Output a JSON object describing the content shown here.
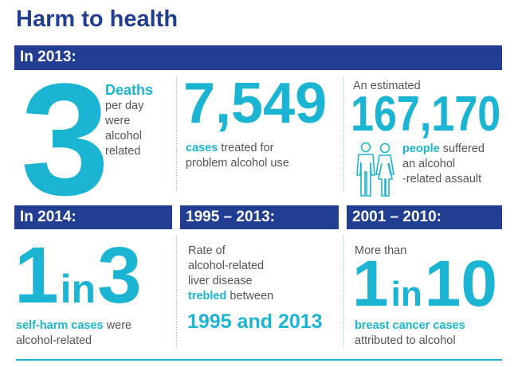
{
  "header": {
    "title": "Harm to health"
  },
  "sections": [
    {
      "heading": "In 2013:",
      "panels": [
        {
          "stat": "3",
          "highlight": "Deaths",
          "description_lines": [
            "per day",
            "were",
            "alcohol",
            "related"
          ]
        },
        {
          "stat": "7,549",
          "highlight": "cases",
          "description_lines": [
            "treated for",
            "problem alcohol use"
          ]
        },
        {
          "intro": "An estimated",
          "stat": "167,170",
          "highlight": "people",
          "description_lines": [
            "suffered",
            "an alcohol",
            "-related assault"
          ]
        }
      ]
    },
    {
      "panels": [
        {
          "heading": "In 2014:",
          "stat_parts": [
            "1",
            "in",
            "3"
          ],
          "highlight": "self-harm cases",
          "description_lines": [
            "were",
            "alcohol-related"
          ]
        },
        {
          "heading": "1995 – 2013:",
          "description_lines": [
            "Rate of",
            "alcohol-related",
            "liver disease"
          ],
          "highlight": "trebled",
          "after_highlight": "between",
          "period": "1995 and 2013"
        },
        {
          "heading": "2001 – 2010:",
          "intro": "More than",
          "stat_parts": [
            "1",
            "in",
            "10"
          ],
          "highlight": "breast cancer cases",
          "description_lines": [
            "attributed to alcohol"
          ]
        }
      ]
    }
  ]
}
